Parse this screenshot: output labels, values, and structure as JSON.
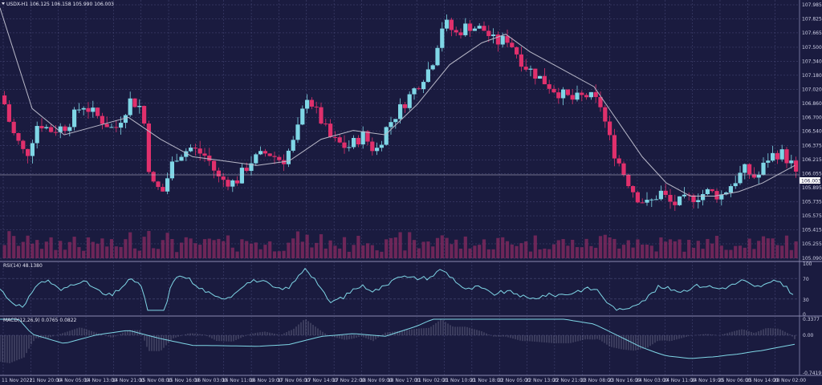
{
  "header": {
    "symbol_line": "USDX-H1 106.125 106.158 105.990 106.003",
    "rsi_label": "RSI(14) 48.1380",
    "macd_label": "MACD(12,26,9) 0.0765 0.0822"
  },
  "price_axis": {
    "ticks": [
      "107.985",
      "107.825",
      "107.665",
      "107.500",
      "107.340",
      "107.180",
      "107.020",
      "106.860",
      "106.700",
      "106.540",
      "106.375",
      "106.215",
      "106.055",
      "105.895",
      "105.735",
      "105.575",
      "105.415",
      "105.255",
      "105.090"
    ],
    "current_price": "106.003"
  },
  "rsi_axis": {
    "ticks": [
      "100",
      "70",
      "30",
      "0"
    ]
  },
  "macd_axis": {
    "ticks": [
      "0.3377",
      "0.00",
      "-0.7419"
    ]
  },
  "time_axis": {
    "labels": [
      "11 Nov 2022",
      "11 Nov 20:00",
      "14 Nov 05:00",
      "14 Nov 13:00",
      "14 Nov 21:00",
      "15 Nov 08:00",
      "15 Nov 16:00",
      "16 Nov 03:00",
      "16 Nov 11:00",
      "16 Nov 19:00",
      "17 Nov 06:00",
      "17 Nov 14:00",
      "17 Nov 22:00",
      "18 Nov 09:00",
      "18 Nov 17:00",
      "21 Nov 02:00",
      "21 Nov 10:00",
      "21 Nov 18:00",
      "22 Nov 05:00",
      "22 Nov 13:00",
      "22 Nov 21:00",
      "23 Nov 08:00",
      "23 Nov 16:00",
      "24 Nov 03:00",
      "24 Nov 11:00",
      "24 Nov 19:00",
      "25 Nov 06:00",
      "25 Nov 14:00",
      "28 Nov 02:00"
    ]
  },
  "colors": {
    "background": "#1a1b3f",
    "bull": "#7fd6e6",
    "bear": "#e0306c",
    "ma": "#b8b8c8",
    "indicator": "#7fd6e6",
    "grid": "#4a4c7a"
  },
  "chart_data": {
    "type": "candlestick",
    "symbol": "USDX",
    "timeframe": "H1",
    "price_range": [
      105.09,
      107.985
    ],
    "close_path": [
      [
        0,
        106.95
      ],
      [
        12,
        106.55
      ],
      [
        30,
        106.25
      ],
      [
        45,
        106.65
      ],
      [
        60,
        106.55
      ],
      [
        80,
        106.6
      ],
      [
        100,
        106.85
      ],
      [
        120,
        106.7
      ],
      [
        140,
        106.55
      ],
      [
        160,
        106.9
      ],
      [
        175,
        106.8
      ],
      [
        185,
        105.95
      ],
      [
        200,
        105.85
      ],
      [
        215,
        106.25
      ],
      [
        235,
        106.35
      ],
      [
        255,
        106.25
      ],
      [
        270,
        106.0
      ],
      [
        290,
        105.95
      ],
      [
        310,
        106.2
      ],
      [
        330,
        106.3
      ],
      [
        350,
        106.2
      ],
      [
        365,
        106.45
      ],
      [
        380,
        106.95
      ],
      [
        395,
        106.7
      ],
      [
        410,
        106.45
      ],
      [
        430,
        106.35
      ],
      [
        450,
        106.5
      ],
      [
        465,
        106.3
      ],
      [
        480,
        106.6
      ],
      [
        500,
        106.85
      ],
      [
        520,
        107.1
      ],
      [
        535,
        107.3
      ],
      [
        550,
        107.8
      ],
      [
        565,
        107.65
      ],
      [
        580,
        107.75
      ],
      [
        600,
        107.7
      ],
      [
        615,
        107.55
      ],
      [
        630,
        107.6
      ],
      [
        650,
        107.3
      ],
      [
        670,
        107.15
      ],
      [
        690,
        107.0
      ],
      [
        710,
        106.9
      ],
      [
        730,
        106.95
      ],
      [
        745,
        106.85
      ],
      [
        760,
        106.35
      ],
      [
        775,
        106.05
      ],
      [
        790,
        105.8
      ],
      [
        805,
        105.7
      ],
      [
        820,
        105.85
      ],
      [
        835,
        105.7
      ],
      [
        850,
        105.75
      ],
      [
        865,
        105.8
      ],
      [
        880,
        105.85
      ],
      [
        895,
        105.8
      ],
      [
        910,
        105.95
      ],
      [
        925,
        106.1
      ],
      [
        940,
        106.0
      ],
      [
        955,
        106.25
      ],
      [
        970,
        106.3
      ],
      [
        985,
        106.15
      ],
      [
        990,
        106.0
      ]
    ],
    "ma_path": [
      [
        0,
        107.95
      ],
      [
        40,
        106.8
      ],
      [
        80,
        106.5
      ],
      [
        120,
        106.6
      ],
      [
        160,
        106.7
      ],
      [
        200,
        106.45
      ],
      [
        240,
        106.25
      ],
      [
        280,
        106.2
      ],
      [
        320,
        106.15
      ],
      [
        360,
        106.2
      ],
      [
        400,
        106.45
      ],
      [
        440,
        106.55
      ],
      [
        480,
        106.5
      ],
      [
        520,
        106.85
      ],
      [
        560,
        107.3
      ],
      [
        600,
        107.55
      ],
      [
        630,
        107.65
      ],
      [
        660,
        107.45
      ],
      [
        700,
        107.25
      ],
      [
        740,
        107.05
      ],
      [
        770,
        106.65
      ],
      [
        800,
        106.25
      ],
      [
        830,
        105.95
      ],
      [
        860,
        105.8
      ],
      [
        890,
        105.8
      ],
      [
        920,
        105.85
      ],
      [
        950,
        105.95
      ],
      [
        980,
        106.1
      ],
      [
        990,
        106.15
      ]
    ]
  }
}
